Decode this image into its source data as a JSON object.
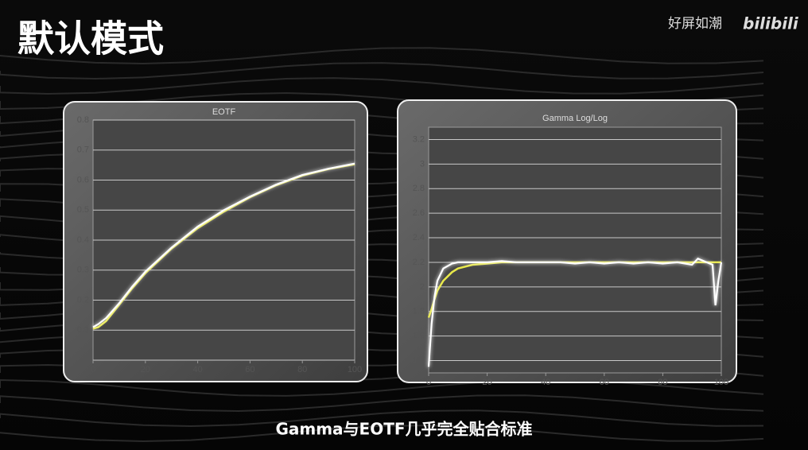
{
  "title": "默认模式",
  "watermark": "好屏如潮",
  "logo": "bilibili",
  "caption": "Gamma与EOTF几乎完全贴合标准",
  "chart_data": [
    {
      "type": "line",
      "title": "EOTF",
      "x": [
        0,
        2,
        5,
        10,
        15,
        20,
        30,
        40,
        50,
        60,
        70,
        80,
        90,
        100
      ],
      "series": [
        {
          "color": "#e8e84a",
          "values": [
            0.105,
            0.11,
            0.13,
            0.185,
            0.24,
            0.29,
            0.372,
            0.44,
            0.495,
            0.543,
            0.583,
            0.615,
            0.637,
            0.653
          ]
        },
        {
          "color": "#ffffff",
          "values": [
            0.11,
            0.12,
            0.14,
            0.19,
            0.245,
            0.295,
            0.375,
            0.445,
            0.5,
            0.545,
            0.585,
            0.617,
            0.638,
            0.655
          ]
        }
      ],
      "xlim": [
        0,
        100
      ],
      "xticks": [
        0,
        20,
        40,
        60,
        80,
        100
      ],
      "ylim": [
        0,
        0.8
      ],
      "yticks": [
        0,
        0.1,
        0.2,
        0.3,
        0.4,
        0.5,
        0.6,
        0.7,
        0.8
      ],
      "grid": true
    },
    {
      "type": "line",
      "title": "Gamma Log/Log",
      "x": [
        0,
        1,
        2,
        3,
        5,
        8,
        10,
        15,
        20,
        25,
        30,
        35,
        40,
        45,
        50,
        55,
        60,
        65,
        70,
        75,
        80,
        85,
        90,
        92,
        95,
        97,
        98,
        99,
        100
      ],
      "series": [
        {
          "color": "#e8e84a",
          "values": [
            1.75,
            1.82,
            1.9,
            1.97,
            2.05,
            2.12,
            2.15,
            2.18,
            2.19,
            2.2,
            2.2,
            2.2,
            2.2,
            2.2,
            2.2,
            2.2,
            2.2,
            2.2,
            2.2,
            2.2,
            2.2,
            2.2,
            2.2,
            2.2,
            2.2,
            2.2,
            2.2,
            2.2,
            2.2
          ]
        },
        {
          "color": "#ffffff",
          "values": [
            1.35,
            1.7,
            1.92,
            2.05,
            2.15,
            2.19,
            2.2,
            2.2,
            2.2,
            2.21,
            2.2,
            2.2,
            2.2,
            2.2,
            2.19,
            2.2,
            2.19,
            2.2,
            2.19,
            2.2,
            2.19,
            2.2,
            2.18,
            2.23,
            2.2,
            2.18,
            1.85,
            2.05,
            2.2
          ]
        }
      ],
      "xlim": [
        0,
        100
      ],
      "xticks": [
        0,
        20,
        40,
        60,
        80,
        100
      ],
      "ylim": [
        1.3,
        3.3
      ],
      "yticks": [
        1.4,
        1.6,
        1.8,
        2,
        2.2,
        2.4,
        2.6,
        2.8,
        3,
        3.2
      ],
      "grid": true
    }
  ]
}
